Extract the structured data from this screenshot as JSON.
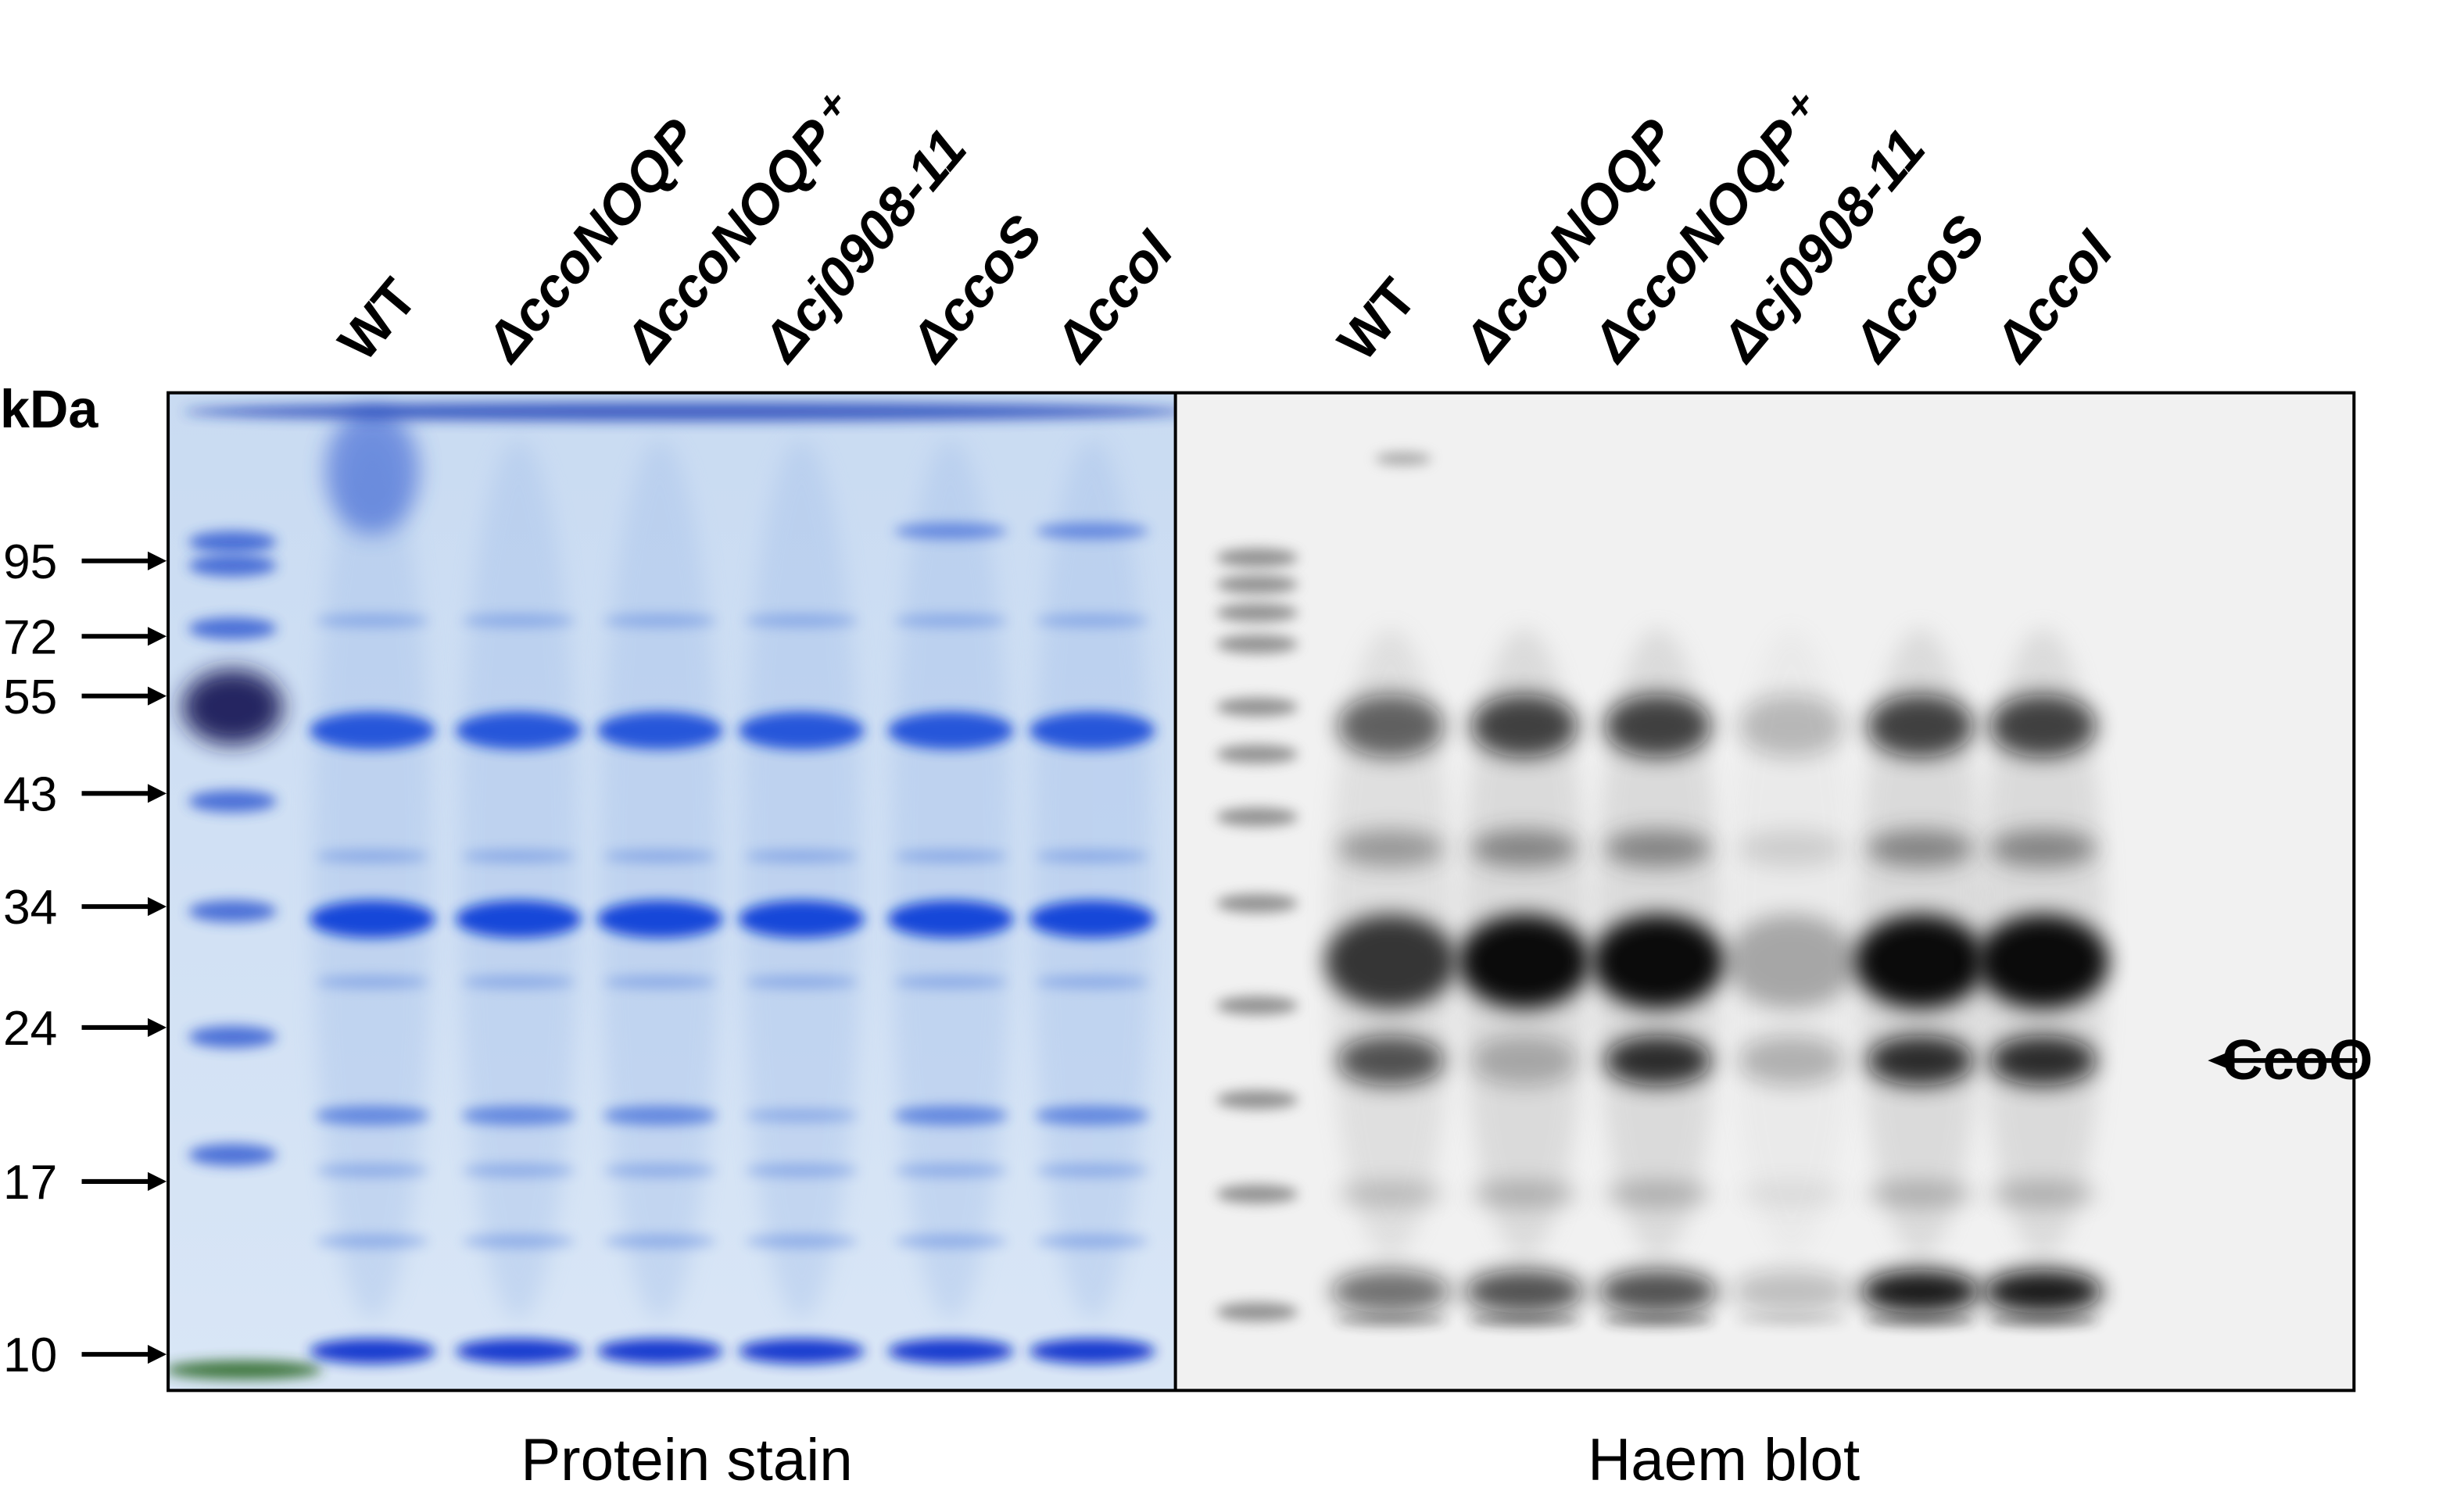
{
  "left_panel": {
    "lanes": [
      "WT",
      "ΔccoNOQP",
      "ΔccoNOQP⁺",
      "Δcj0908-11",
      "ΔccoS",
      "ΔccoI"
    ],
    "caption": "Protein stain"
  },
  "right_panel": {
    "lanes": [
      "WT",
      "ΔccoNOQP",
      "ΔccoNOQP⁺",
      "Δcj0908-11",
      "ΔccoS",
      "ΔccoI"
    ],
    "caption": "Haem blot"
  },
  "marker": {
    "unit": "kDa",
    "sizes": [
      95,
      72,
      55,
      43,
      34,
      24,
      17,
      10
    ]
  },
  "annotation": "CcoO"
}
